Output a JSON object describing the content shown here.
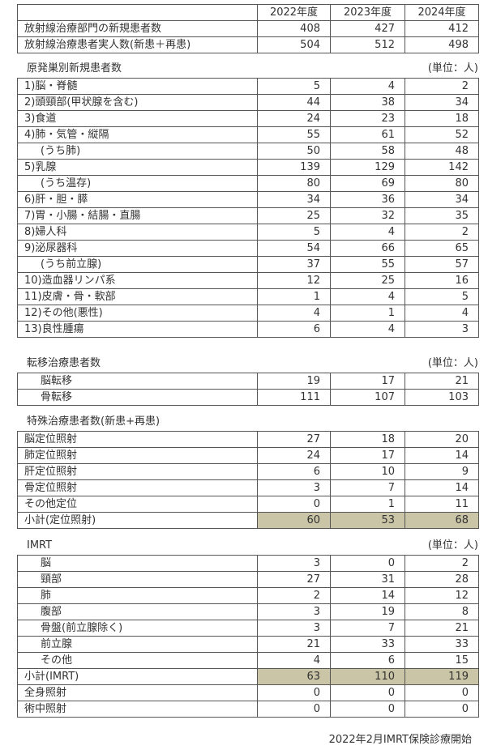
{
  "header": {
    "years": [
      "2022年度",
      "2023年度",
      "2024年度"
    ]
  },
  "summary": {
    "rows": [
      {
        "label": "放射線治療部門の新規患者数",
        "values": [
          "408",
          "427",
          "412"
        ]
      },
      {
        "label": "放射線治療患者実人数(新患＋再患)",
        "values": [
          "504",
          "512",
          "498"
        ]
      }
    ]
  },
  "primary": {
    "title": "原発巣別新規患者数",
    "unit": "(単位：人)",
    "rows": [
      {
        "label": "1)脳・脊髄",
        "values": [
          "5",
          "4",
          "2"
        ]
      },
      {
        "label": "2)頭頸部(甲状腺を含む)",
        "values": [
          "44",
          "38",
          "34"
        ]
      },
      {
        "label": "3)食道",
        "values": [
          "24",
          "23",
          "18"
        ]
      },
      {
        "label": "4)肺・気管・縦隔",
        "values": [
          "55",
          "61",
          "52"
        ]
      },
      {
        "label": "(うち肺)",
        "sub": true,
        "values": [
          "50",
          "58",
          "48"
        ]
      },
      {
        "label": "5)乳腺",
        "values": [
          "139",
          "129",
          "142"
        ]
      },
      {
        "label": "(うち温存)",
        "sub": true,
        "values": [
          "80",
          "69",
          "80"
        ]
      },
      {
        "label": "6)肝・胆・膵",
        "values": [
          "34",
          "36",
          "34"
        ]
      },
      {
        "label": "7)胃・小腸・結腸・直腸",
        "values": [
          "25",
          "32",
          "35"
        ]
      },
      {
        "label": "8)婦人科",
        "values": [
          "5",
          "4",
          "2"
        ]
      },
      {
        "label": "9)泌尿器科",
        "values": [
          "54",
          "66",
          "65"
        ]
      },
      {
        "label": "(うち前立腺)",
        "sub": true,
        "values": [
          "37",
          "55",
          "57"
        ]
      },
      {
        "label": "10)造血器リンパ系",
        "values": [
          "12",
          "25",
          "16"
        ]
      },
      {
        "label": "11)皮膚・骨・軟部",
        "values": [
          "1",
          "4",
          "5"
        ]
      },
      {
        "label": "12)その他(悪性)",
        "values": [
          "4",
          "1",
          "4"
        ]
      },
      {
        "label": "13)良性腫瘍",
        "values": [
          "6",
          "4",
          "3"
        ]
      }
    ]
  },
  "metastasis": {
    "title": "転移治療患者数",
    "unit": "(単位：人)",
    "rows": [
      {
        "label": "脳転移",
        "sub": true,
        "values": [
          "19",
          "17",
          "21"
        ]
      },
      {
        "label": "骨転移",
        "sub": true,
        "values": [
          "111",
          "107",
          "103"
        ]
      }
    ]
  },
  "special": {
    "title": "特殊治療患者数(新患+再患)",
    "rows": [
      {
        "label": "脳定位照射",
        "values": [
          "27",
          "18",
          "20"
        ]
      },
      {
        "label": "肺定位照射",
        "values": [
          "24",
          "17",
          "14"
        ]
      },
      {
        "label": "肝定位照射",
        "values": [
          "6",
          "10",
          "9"
        ]
      },
      {
        "label": "骨定位照射",
        "values": [
          "3",
          "7",
          "14"
        ]
      },
      {
        "label": "その他定位",
        "values": [
          "0",
          "1",
          "11"
        ]
      },
      {
        "label": "小計(定位照射)",
        "highlight": true,
        "values": [
          "60",
          "53",
          "68"
        ]
      }
    ]
  },
  "imrt": {
    "title": "IMRT",
    "unit": "(単位：人)",
    "rows": [
      {
        "label": "脳",
        "sub": true,
        "values": [
          "3",
          "0",
          "2"
        ]
      },
      {
        "label": "頸部",
        "sub": true,
        "values": [
          "27",
          "31",
          "28"
        ]
      },
      {
        "label": "肺",
        "sub": true,
        "values": [
          "2",
          "14",
          "12"
        ]
      },
      {
        "label": "腹部",
        "sub": true,
        "values": [
          "3",
          "19",
          "8"
        ]
      },
      {
        "label": "骨盤(前立腺除く)",
        "sub": true,
        "values": [
          "3",
          "7",
          "21"
        ]
      },
      {
        "label": "前立腺",
        "sub": true,
        "values": [
          "21",
          "33",
          "33"
        ]
      },
      {
        "label": "その他",
        "sub": true,
        "values": [
          "4",
          "6",
          "15"
        ]
      },
      {
        "label": "小計(IMRT)",
        "highlight": true,
        "values": [
          "63",
          "110",
          "119"
        ]
      },
      {
        "label": "全身照射",
        "values": [
          "0",
          "0",
          "0"
        ]
      },
      {
        "label": "術中照射",
        "values": [
          "0",
          "0",
          "0"
        ]
      }
    ]
  },
  "footnote": "2022年2月IMRT保険診療開始",
  "colors": {
    "subtotal_fill": "#cac5a6",
    "border": "#555555",
    "text": "#333333"
  }
}
